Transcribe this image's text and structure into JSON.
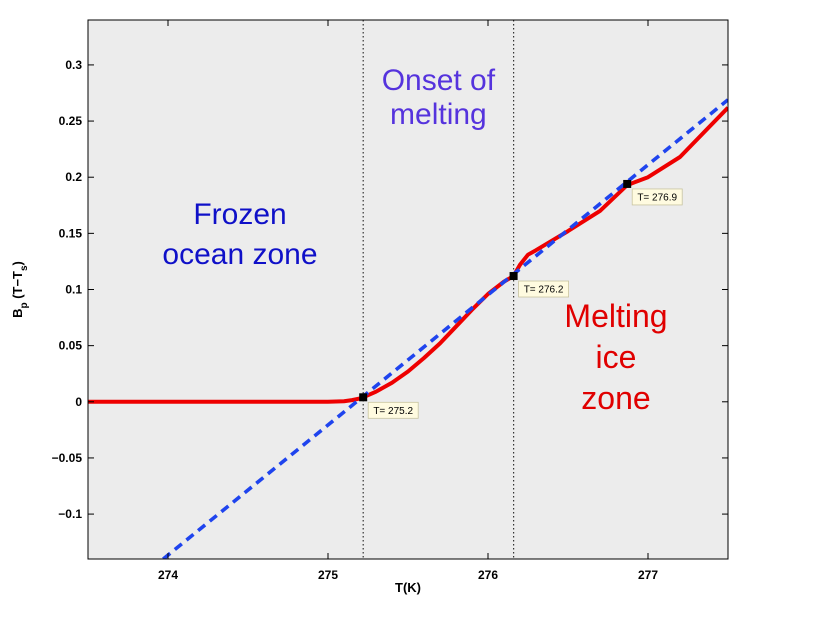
{
  "chart_data": {
    "type": "line",
    "xlabel": "T(K)",
    "ylabel": {
      "base": "B",
      "sub1": "p",
      "mid": " (T−T",
      "sub2": "s",
      "end": ")"
    },
    "xlim": [
      273.5,
      277.5
    ],
    "ylim": [
      -0.14,
      0.34
    ],
    "xticks": [
      274,
      275,
      276,
      277
    ],
    "xtick_labels": [
      "274",
      "275",
      "276",
      "277"
    ],
    "yticks": [
      -0.1,
      -0.05,
      0,
      0.05,
      0.1,
      0.15,
      0.2,
      0.25,
      0.3
    ],
    "ytick_labels": [
      "−0.1",
      "−0.05",
      "0",
      "0.05",
      "0.1",
      "0.15",
      "0.2",
      "0.25",
      "0.3"
    ],
    "background_color": "#ececec",
    "vertical_lines": [
      275.22,
      276.16
    ],
    "series": [
      {
        "name": "solid-red",
        "color": "#ee0000",
        "style": "solid",
        "x": [
          273.5,
          275.0,
          275.1,
          275.15,
          275.2,
          275.22,
          275.3,
          275.4,
          275.5,
          275.6,
          275.7,
          275.8,
          275.9,
          276.0,
          276.1,
          276.16,
          276.2,
          276.25,
          276.3,
          276.5,
          276.7,
          276.87,
          277.0,
          277.2,
          277.5
        ],
        "y": [
          0,
          0,
          0.0005,
          0.0015,
          0.003,
          0.004,
          0.009,
          0.017,
          0.027,
          0.039,
          0.052,
          0.067,
          0.082,
          0.096,
          0.107,
          0.112,
          0.122,
          0.131,
          0.135,
          0.152,
          0.17,
          0.193,
          0.2,
          0.218,
          0.262
        ]
      },
      {
        "name": "dashed-blue",
        "color": "#1f44ee",
        "style": "dashed",
        "x": [
          273.97,
          277.5
        ],
        "y": [
          -0.14,
          0.269
        ]
      }
    ],
    "markers": [
      {
        "x": 275.22,
        "y": 0.004,
        "label": "T= 275.2"
      },
      {
        "x": 276.16,
        "y": 0.112,
        "label": "T= 276.2"
      },
      {
        "x": 276.87,
        "y": 0.194,
        "label": "T= 276.9"
      }
    ],
    "annotations": [
      {
        "lines": [
          "Onset of",
          "melting"
        ],
        "color": "#5533dd",
        "x": 275.69,
        "y": 0.272
      },
      {
        "lines": [
          "Frozen",
          "ocean zone"
        ],
        "color": "#0f10c8",
        "x": 274.45,
        "y": 0.15
      },
      {
        "lines": [
          "Melting",
          "ice",
          "zone"
        ],
        "color": "#e00000",
        "x": 276.8,
        "y": 0.04
      }
    ]
  }
}
